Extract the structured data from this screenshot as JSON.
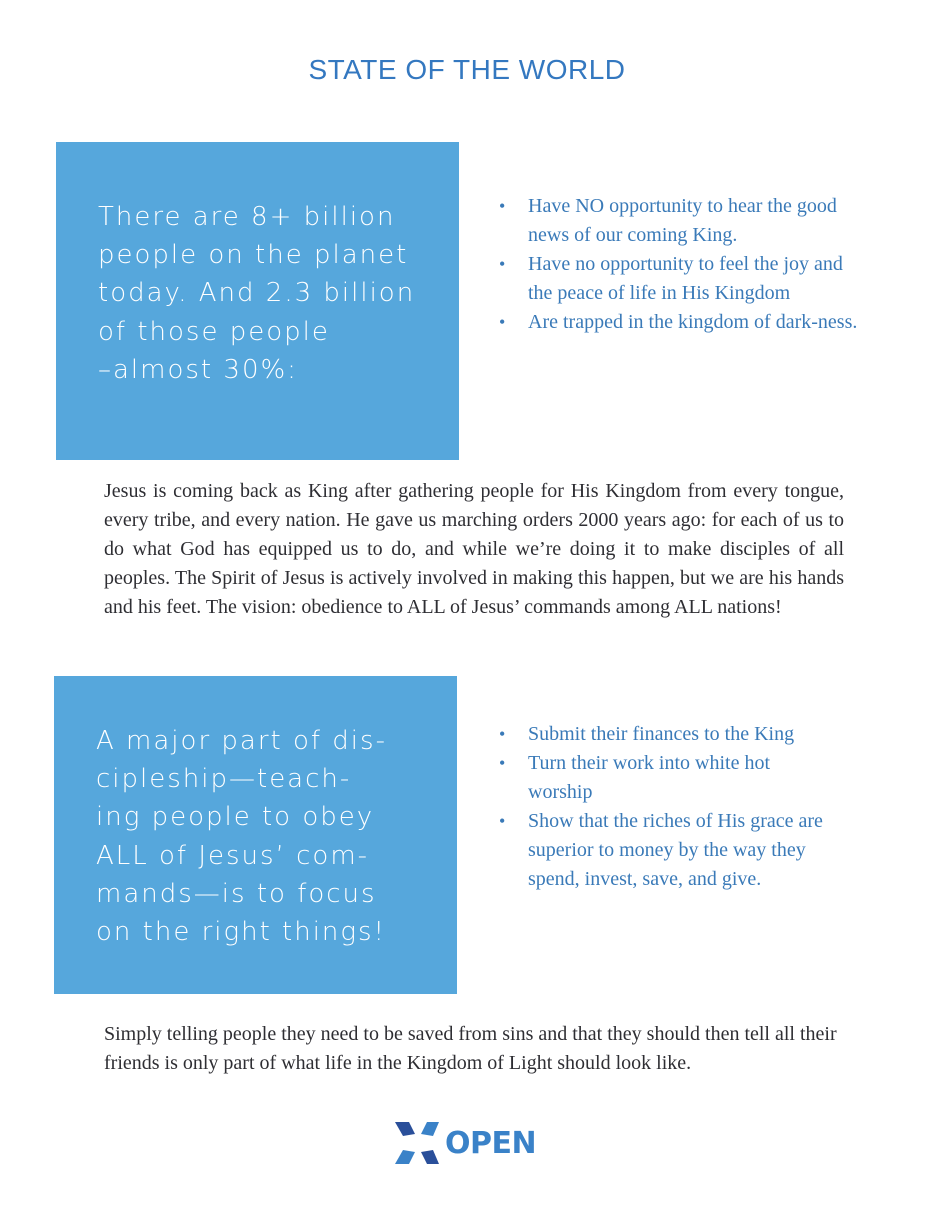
{
  "title": "STATE OF THE WORLD",
  "box1": {
    "lines": [
      "There are 8+ billion",
      "people on the planet",
      "today. And 2.3 billion",
      "of those people",
      "–almost 30%:"
    ]
  },
  "list1": [
    "Have NO opportunity to hear the good news of our coming King.",
    "Have no opportunity to feel the joy and the peace of life in His Kingdom",
    "Are trapped in the kingdom of dark-ness."
  ],
  "paragraph1": "Jesus is coming back as King after gathering people for His Kingdom from every tongue, every tribe, and every nation. He gave us marching orders 2000 years ago: for each of us to do what God has equipped us to do, and while we’re doing it to make disciples of all peoples. The Spirit of Jesus is actively involved in making this happen, but we are his hands and his feet. The vision: obedience to ALL of Jesus’ commands among ALL nations!",
  "box2": {
    "lines": [
      "A major part of dis-",
      "cipleship—teach-",
      "ing people to obey",
      "ALL of Jesus’ com-",
      "mands—is to focus",
      "on the right things!"
    ]
  },
  "list2": [
    "Submit their finances to the King",
    "Turn their work into white hot worship",
    "Show that the riches of His grace are superior to money by the way they spend, invest, save, and give."
  ],
  "paragraph2": "Simply telling people they need to be saved from sins and that they should then tell all their friends is only part of what life in the Kingdom of Light should look like.",
  "logo": {
    "text": "OPEN"
  },
  "colors": {
    "accent": "#56a7dc",
    "heading": "#3478c0",
    "bullet_text": "#3a7ab8"
  }
}
